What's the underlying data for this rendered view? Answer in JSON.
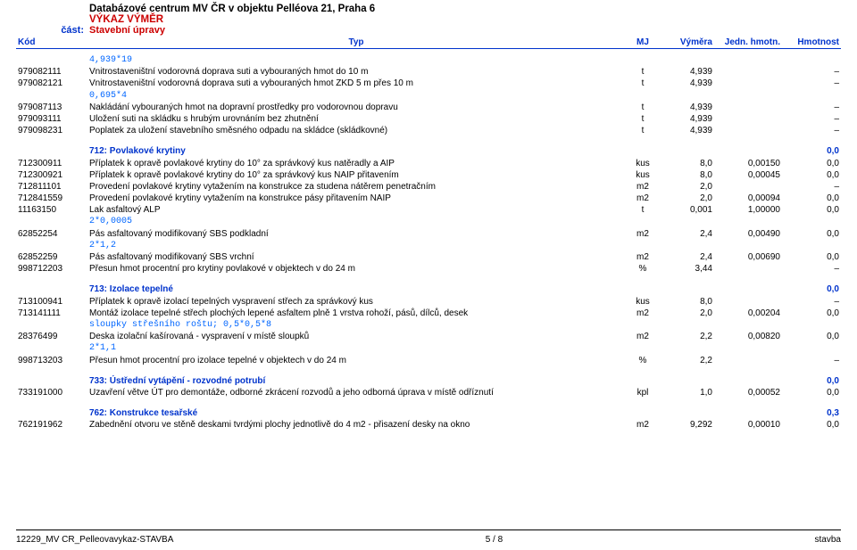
{
  "header": {
    "title": "Databázové centrum MV ČR v objektu Pelléova 21, Praha 6",
    "subtitle": "VÝKAZ VÝMĚR",
    "part_label": "část:",
    "part_value": "Stavební úpravy"
  },
  "columns": {
    "code": "Kód",
    "desc": "Typ",
    "mj": "MJ",
    "qty": "Výměra",
    "unit": "Jedn. hmotn.",
    "total": "Hmotnost"
  },
  "rows": [
    {
      "t": "note",
      "desc": "4,939*19"
    },
    {
      "t": "item",
      "code": "979082111",
      "desc": "Vnitrostaveništní vodorovná doprava suti a vybouraných hmot do 10 m",
      "mj": "t",
      "qty": "4,939",
      "unit": "",
      "total": "–"
    },
    {
      "t": "item",
      "code": "979082121",
      "desc": "Vnitrostaveništní vodorovná doprava suti a vybouraných hmot ZKD 5 m přes 10 m",
      "mj": "t",
      "qty": "4,939",
      "unit": "",
      "total": "–"
    },
    {
      "t": "note",
      "desc": "0,695*4"
    },
    {
      "t": "item",
      "code": "979087113",
      "desc": "Nakládání vybouraných hmot na dopravní prostředky pro vodorovnou dopravu",
      "mj": "t",
      "qty": "4,939",
      "unit": "",
      "total": "–"
    },
    {
      "t": "item",
      "code": "979093111",
      "desc": "Uložení suti na skládku s hrubým urovnáním bez zhutnění",
      "mj": "t",
      "qty": "4,939",
      "unit": "",
      "total": "–"
    },
    {
      "t": "item",
      "code": "979098231",
      "desc": "Poplatek za uložení stavebního směsného odpadu na skládce (skládkovné)",
      "mj": "t",
      "qty": "4,939",
      "unit": "",
      "total": "–"
    },
    {
      "t": "spacer"
    },
    {
      "t": "sect",
      "desc": "712: Povlakové krytiny",
      "total": "0,0"
    },
    {
      "t": "item",
      "code": "712300911",
      "desc": "Příplatek k opravě povlakové krytiny do 10° za správkový kus natěradly a AIP",
      "mj": "kus",
      "qty": "8,0",
      "unit": "0,00150",
      "total": "0,0"
    },
    {
      "t": "item",
      "code": "712300921",
      "desc": "Příplatek k opravě povlakové krytiny do 10° za správkový kus NAIP přitavením",
      "mj": "kus",
      "qty": "8,0",
      "unit": "0,00045",
      "total": "0,0"
    },
    {
      "t": "item",
      "code": "712811101",
      "desc": "Provedení povlakové krytiny vytažením na konstrukce za studena nátěrem penetračním",
      "mj": "m2",
      "qty": "2,0",
      "unit": "",
      "total": "–"
    },
    {
      "t": "item",
      "code": "712841559",
      "desc": "Provedení povlakové krytiny vytažením na konstrukce pásy přitavením NAIP",
      "mj": "m2",
      "qty": "2,0",
      "unit": "0,00094",
      "total": "0,0"
    },
    {
      "t": "item",
      "code": "11163150",
      "desc": "Lak asfaltový ALP",
      "mj": "t",
      "qty": "0,001",
      "unit": "1,00000",
      "total": "0,0"
    },
    {
      "t": "note",
      "desc": "2*0,0005"
    },
    {
      "t": "item",
      "code": "62852254",
      "desc": "Pás asfaltovaný modifikovaný SBS podkladní",
      "mj": "m2",
      "qty": "2,4",
      "unit": "0,00490",
      "total": "0,0"
    },
    {
      "t": "note",
      "desc": "2*1,2"
    },
    {
      "t": "item",
      "code": "62852259",
      "desc": "Pás asfaltovaný modifikovaný SBS vrchní",
      "mj": "m2",
      "qty": "2,4",
      "unit": "0,00690",
      "total": "0,0"
    },
    {
      "t": "item",
      "code": "998712203",
      "desc": "Přesun hmot procentní pro krytiny povlakové v objektech v do 24 m",
      "mj": "%",
      "qty": "3,44",
      "unit": "",
      "total": "–"
    },
    {
      "t": "spacer"
    },
    {
      "t": "sect",
      "desc": "713: Izolace tepelné",
      "total": "0,0"
    },
    {
      "t": "item",
      "code": "713100941",
      "desc": "Příplatek k opravě izolací tepelných vyspravení střech za správkový kus",
      "mj": "kus",
      "qty": "8,0",
      "unit": "",
      "total": "–"
    },
    {
      "t": "item",
      "code": "713141111",
      "desc": "Montáž izolace tepelné střech plochých lepené asfaltem plně 1 vrstva rohoží, pásů, dílců, desek",
      "mj": "m2",
      "qty": "2,0",
      "unit": "0,00204",
      "total": "0,0"
    },
    {
      "t": "note",
      "desc": "sloupky střešního roštu;  0,5*0,5*8"
    },
    {
      "t": "item",
      "code": "28376499",
      "desc": "Deska izolační kašírovaná - vyspravení v místě sloupků",
      "mj": "m2",
      "qty": "2,2",
      "unit": "0,00820",
      "total": "0,0"
    },
    {
      "t": "note",
      "desc": "2*1,1"
    },
    {
      "t": "item",
      "code": "998713203",
      "desc": "Přesun hmot procentní pro izolace tepelné v objektech v do 24 m",
      "mj": "%",
      "qty": "2,2",
      "unit": "",
      "total": "–"
    },
    {
      "t": "spacer"
    },
    {
      "t": "sect",
      "desc": "733: Ústřední vytápění - rozvodné potrubí",
      "total": "0,0"
    },
    {
      "t": "item",
      "code": "733191000",
      "desc": "Uzavření větve ÚT pro demontáže, odborné zkrácení rozvodů a jeho odborná úprava v místě odříznutí",
      "mj": "kpl",
      "qty": "1,0",
      "unit": "0,00052",
      "total": "0,0"
    },
    {
      "t": "spacer"
    },
    {
      "t": "sect",
      "desc": "762: Konstrukce tesařské",
      "total": "0,3"
    },
    {
      "t": "item",
      "code": "762191962",
      "desc": "Zabednění otvoru ve stěně deskami tvrdými plochy jednotlivě do 4 m2 - přisazení desky na okno",
      "mj": "m2",
      "qty": "9,292",
      "unit": "0,00010",
      "total": "0,0"
    }
  ],
  "footer": {
    "left": "12229_MV CR_Pelleovavykaz-STAVBA",
    "center": "5 / 8",
    "right": "stavba"
  }
}
